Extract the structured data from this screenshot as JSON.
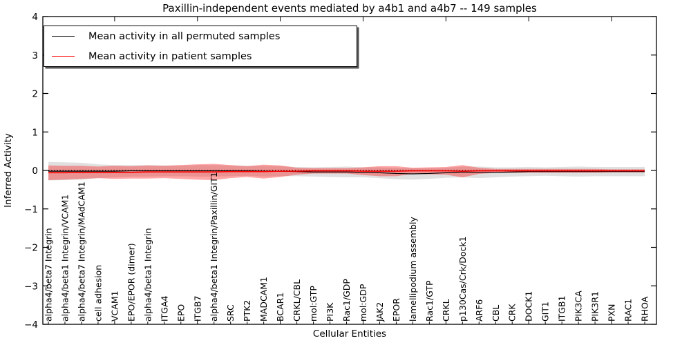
{
  "chart_data": {
    "type": "line",
    "title": "Paxillin-independent events mediated by a4b1 and a4b7 -- 149 samples",
    "xlabel": "Cellular Entities",
    "ylabel": "Inferred Activity",
    "ylim": [
      -4,
      4
    ],
    "yticks": [
      -4,
      -3,
      -2,
      -1,
      0,
      1,
      2,
      3,
      4
    ],
    "grid": false,
    "legend_position": "upper left",
    "zero_reference_line": 0,
    "categories": [
      "alpha4/beta7 Integrin",
      "alpha4/beta1 Integrin/VCAM1",
      "alpha4/beta7 Integrin/MAdCAM1",
      "cell adhesion",
      "VCAM1",
      "EPO/EPOR (dimer)",
      "alpha4/beta1 Integrin",
      "ITGA4",
      "EPO",
      "ITGB7",
      "alpha4/beta1 Integrin/Paxillin/GIT1",
      "SRC",
      "PTK2",
      "MADCAM1",
      "BCAR1",
      "CRKL/CBL",
      "mol:GTP",
      "PI3K",
      "Rac1/GDP",
      "mol:GDP",
      "JAK2",
      "EPOR",
      "lamellipodium assembly",
      "Rac1/GTP",
      "CRKL",
      "p130Cas/Crk/Dock1",
      "ARF6",
      "CBL",
      "CRK",
      "DOCK1",
      "GIT1",
      "ITGB1",
      "PIK3CA",
      "PIK3R1",
      "PXN",
      "RAC1",
      "RHOA"
    ],
    "legend": [
      {
        "label": "Mean activity in all permuted samples",
        "color": "#000000"
      },
      {
        "label": "Mean activity in patient samples",
        "color": "#ff0000"
      }
    ],
    "series": [
      {
        "name": "Mean activity in all permuted samples",
        "color": "#000000",
        "band_color": "rgba(0,0,0,0.12)",
        "mean": [
          -0.02,
          -0.02,
          -0.02,
          -0.02,
          -0.02,
          -0.01,
          -0.01,
          -0.01,
          -0.01,
          -0.01,
          -0.01,
          -0.01,
          -0.01,
          -0.02,
          -0.02,
          -0.03,
          -0.04,
          -0.04,
          -0.04,
          -0.05,
          -0.06,
          -0.08,
          -0.09,
          -0.08,
          -0.06,
          -0.04,
          -0.05,
          -0.05,
          -0.04,
          -0.03,
          -0.03,
          -0.03,
          -0.03,
          -0.03,
          -0.03,
          -0.03,
          -0.03
        ],
        "std": [
          0.24,
          0.23,
          0.22,
          0.18,
          0.16,
          0.15,
          0.15,
          0.14,
          0.14,
          0.15,
          0.15,
          0.14,
          0.13,
          0.14,
          0.13,
          0.12,
          0.12,
          0.13,
          0.14,
          0.13,
          0.14,
          0.15,
          0.15,
          0.14,
          0.13,
          0.14,
          0.15,
          0.13,
          0.12,
          0.12,
          0.11,
          0.12,
          0.13,
          0.12,
          0.12,
          0.12,
          0.12
        ]
      },
      {
        "name": "Mean activity in patient samples",
        "color": "#ff0000",
        "band_color": "rgba(255,0,0,0.35)",
        "mean": [
          -0.06,
          -0.06,
          -0.05,
          -0.05,
          -0.05,
          -0.05,
          -0.04,
          -0.04,
          -0.04,
          -0.04,
          -0.04,
          -0.03,
          -0.03,
          -0.03,
          -0.02,
          -0.02,
          -0.01,
          -0.01,
          -0.01,
          -0.02,
          -0.02,
          -0.02,
          -0.01,
          -0.01,
          -0.01,
          -0.02,
          -0.01,
          -0.01,
          -0.01,
          -0.01,
          -0.01,
          -0.01,
          -0.01,
          -0.01,
          -0.01,
          -0.01,
          -0.01
        ],
        "std": [
          0.19,
          0.18,
          0.17,
          0.15,
          0.17,
          0.16,
          0.17,
          0.16,
          0.18,
          0.2,
          0.21,
          0.17,
          0.14,
          0.18,
          0.15,
          0.09,
          0.07,
          0.07,
          0.07,
          0.1,
          0.13,
          0.13,
          0.08,
          0.09,
          0.1,
          0.16,
          0.08,
          0.05,
          0.05,
          0.05,
          0.05,
          0.05,
          0.05,
          0.05,
          0.04,
          0.04,
          0.04
        ]
      }
    ]
  }
}
